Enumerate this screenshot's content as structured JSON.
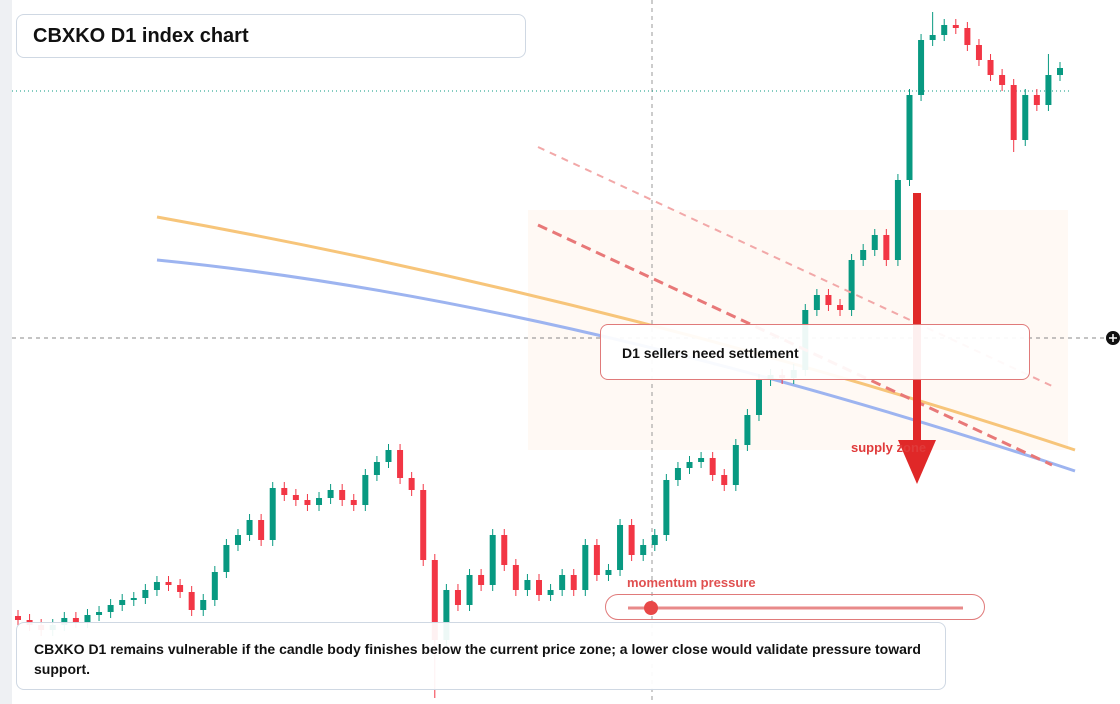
{
  "chart_data": {
    "type": "candlestick",
    "title": "CBXKO D1 index chart",
    "annotation": "D1 sellers need settlement",
    "zone_label": "supply zone",
    "slider_label": "momentum pressure",
    "footnote": "CBXKO D1 remains vulnerable if the candle body finishes below the current price zone; a lower close would validate pressure toward support.",
    "up_color": "#089981",
    "down_color": "#f23645",
    "ylim": [
      0,
      704
    ],
    "open": [
      88,
      84,
      79,
      74,
      79,
      86,
      82,
      89,
      92,
      99,
      104,
      106,
      114,
      122,
      119,
      112,
      94,
      104,
      132,
      159,
      169,
      184,
      164,
      216,
      209,
      204,
      199,
      206,
      214,
      204,
      199,
      229,
      242,
      254,
      226,
      214,
      144,
      64,
      114,
      99,
      129,
      119,
      169,
      139,
      114,
      124,
      109,
      114,
      129,
      114,
      159,
      129,
      134,
      179,
      149,
      159,
      169,
      224,
      236,
      242,
      246,
      229,
      219,
      259,
      289,
      324,
      329,
      326,
      334,
      394,
      409,
      399,
      394,
      444,
      454,
      469,
      444,
      524,
      609,
      664,
      669,
      679,
      676,
      659,
      644,
      629,
      619,
      564,
      609,
      599,
      629
    ],
    "high": [
      94,
      90,
      85,
      85,
      92,
      92,
      95,
      98,
      105,
      110,
      112,
      120,
      128,
      128,
      125,
      118,
      110,
      138,
      165,
      175,
      190,
      190,
      222,
      222,
      215,
      210,
      212,
      220,
      220,
      210,
      235,
      248,
      260,
      260,
      232,
      220,
      150,
      120,
      120,
      135,
      135,
      175,
      175,
      145,
      130,
      130,
      120,
      135,
      135,
      165,
      165,
      140,
      185,
      185,
      165,
      175,
      230,
      242,
      248,
      252,
      252,
      235,
      265,
      295,
      330,
      335,
      335,
      340,
      400,
      415,
      415,
      405,
      450,
      460,
      475,
      475,
      530,
      615,
      670,
      692,
      685,
      685,
      682,
      665,
      650,
      635,
      625,
      615,
      615,
      650,
      642
    ],
    "low": [
      78,
      73,
      68,
      68,
      73,
      76,
      76,
      83,
      86,
      93,
      98,
      100,
      108,
      113,
      106,
      88,
      88,
      98,
      126,
      153,
      163,
      158,
      158,
      203,
      198,
      193,
      193,
      200,
      198,
      193,
      193,
      223,
      236,
      220,
      208,
      138,
      6,
      58,
      93,
      93,
      113,
      113,
      133,
      108,
      108,
      103,
      103,
      108,
      108,
      108,
      123,
      123,
      128,
      143,
      143,
      153,
      163,
      218,
      230,
      236,
      223,
      213,
      213,
      253,
      283,
      318,
      320,
      320,
      328,
      388,
      393,
      388,
      388,
      438,
      448,
      438,
      438,
      518,
      603,
      658,
      663,
      670,
      653,
      638,
      623,
      613,
      552,
      558,
      593,
      593,
      623
    ],
    "close": [
      84,
      79,
      74,
      79,
      86,
      82,
      89,
      92,
      99,
      104,
      106,
      114,
      122,
      119,
      112,
      94,
      104,
      132,
      159,
      169,
      184,
      164,
      216,
      209,
      204,
      199,
      206,
      214,
      204,
      199,
      229,
      242,
      254,
      226,
      214,
      144,
      64,
      114,
      99,
      129,
      119,
      169,
      139,
      114,
      124,
      109,
      114,
      129,
      114,
      159,
      129,
      134,
      179,
      149,
      159,
      169,
      224,
      236,
      242,
      246,
      229,
      219,
      259,
      289,
      324,
      329,
      326,
      334,
      394,
      409,
      399,
      394,
      444,
      454,
      469,
      444,
      524,
      609,
      664,
      669,
      679,
      676,
      659,
      644,
      629,
      619,
      564,
      609,
      599,
      629,
      636
    ]
  }
}
